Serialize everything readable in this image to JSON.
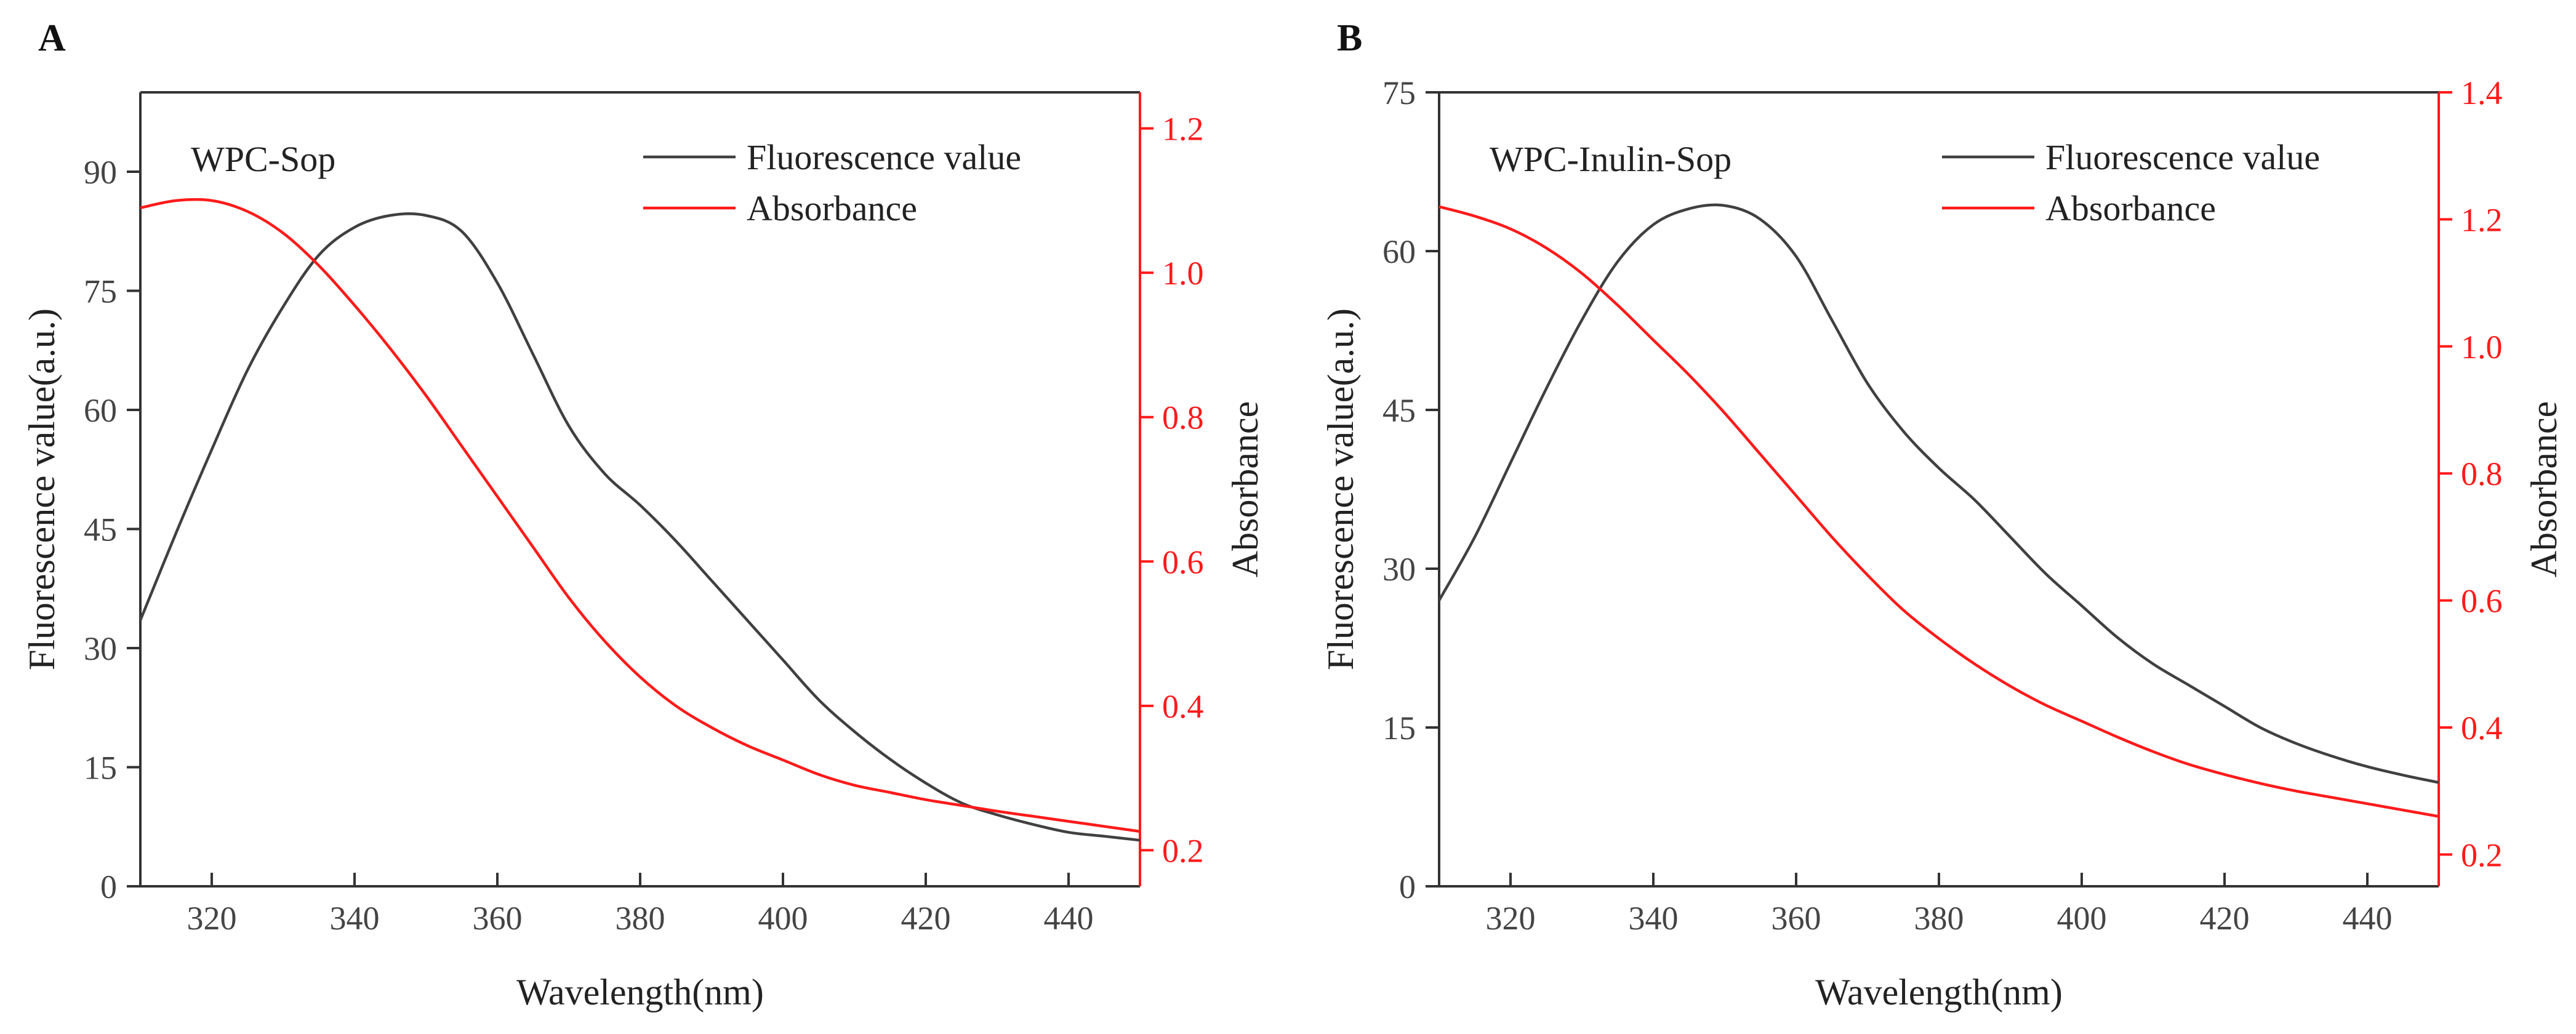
{
  "figure": {
    "axis_color": "#333333",
    "fluorescence_color": "#404040",
    "absorbance_color": "#ff1a1a"
  },
  "chart_data": [
    {
      "panel_label": "A",
      "type": "line",
      "annotation": "WPC-Sop",
      "xlabel": "Wavelength(nm)",
      "ylabel": "Fluorescence value(a.u.)",
      "y2label": "Absorbance",
      "xlim": [
        310,
        450
      ],
      "ylim": [
        0,
        100
      ],
      "y2lim": [
        0.15,
        1.25
      ],
      "xticks": [
        320,
        340,
        360,
        380,
        400,
        420,
        440
      ],
      "yticks": [
        0,
        15,
        30,
        45,
        60,
        75,
        90
      ],
      "y2ticks": [
        0.2,
        0.4,
        0.6,
        0.8,
        1.0,
        1.2
      ],
      "y2tick_labels": [
        "0.2",
        "0.4",
        "0.6",
        "0.8",
        "1.0",
        "1.2"
      ],
      "legend": [
        "Fluorescence value",
        "Absorbance"
      ],
      "series": [
        {
          "name": "Fluorescence value",
          "axis": "left",
          "x": [
            310,
            315,
            320,
            325,
            330,
            335,
            340,
            345,
            350,
            355,
            360,
            365,
            370,
            375,
            380,
            385,
            390,
            395,
            400,
            405,
            410,
            415,
            420,
            425,
            430,
            435,
            440,
            445,
            450
          ],
          "y": [
            33.5,
            44.5,
            55,
            65,
            73,
            79.5,
            83,
            84.5,
            84.5,
            82.5,
            76,
            67,
            58,
            52,
            48,
            43.5,
            38.5,
            33.5,
            28.5,
            23.5,
            19.5,
            16,
            13,
            10.5,
            9,
            7.8,
            6.8,
            6.3,
            5.8
          ]
        },
        {
          "name": "Absorbance",
          "axis": "right",
          "x": [
            310,
            315,
            320,
            325,
            330,
            335,
            340,
            345,
            350,
            355,
            360,
            365,
            370,
            375,
            380,
            385,
            390,
            395,
            400,
            405,
            410,
            415,
            420,
            425,
            430,
            435,
            440,
            445,
            450
          ],
          "y": [
            1.09,
            1.1,
            1.1,
            1.085,
            1.055,
            1.01,
            0.955,
            0.895,
            0.83,
            0.76,
            0.69,
            0.62,
            0.55,
            0.49,
            0.44,
            0.4,
            0.37,
            0.345,
            0.325,
            0.305,
            0.29,
            0.28,
            0.27,
            0.262,
            0.254,
            0.247,
            0.24,
            0.233,
            0.226
          ]
        }
      ]
    },
    {
      "panel_label": "B",
      "type": "line",
      "annotation": "WPC-Inulin-Sop",
      "xlabel": "Wavelength(nm)",
      "ylabel": "Fluorescence value(a.u.)",
      "y2label": "Absorbance",
      "xlim": [
        310,
        450
      ],
      "ylim": [
        0,
        75
      ],
      "y2lim": [
        0.15,
        1.4
      ],
      "xticks": [
        320,
        340,
        360,
        380,
        400,
        420,
        440
      ],
      "yticks": [
        0,
        15,
        30,
        45,
        60,
        75
      ],
      "y2ticks": [
        0.2,
        0.4,
        0.6,
        0.8,
        1.0,
        1.2,
        1.4
      ],
      "y2tick_labels": [
        "0.2",
        "0.4",
        "0.6",
        "0.8",
        "1.0",
        "1.2",
        "1.4"
      ],
      "legend": [
        "Fluorescence value",
        "Absorbance"
      ],
      "series": [
        {
          "name": "Fluorescence value",
          "axis": "left",
          "x": [
            310,
            315,
            320,
            325,
            330,
            335,
            340,
            345,
            350,
            355,
            360,
            365,
            370,
            375,
            380,
            385,
            390,
            395,
            400,
            405,
            410,
            415,
            420,
            425,
            430,
            435,
            440,
            445,
            450
          ],
          "y": [
            27,
            33,
            40,
            47,
            53.5,
            59,
            62.5,
            64,
            64.3,
            63,
            59.5,
            53.5,
            47.5,
            43,
            39.5,
            36.5,
            33,
            29.5,
            26.5,
            23.5,
            21,
            19,
            17,
            15,
            13.5,
            12.3,
            11.3,
            10.5,
            9.8
          ]
        },
        {
          "name": "Absorbance",
          "axis": "right",
          "x": [
            310,
            315,
            320,
            325,
            330,
            335,
            340,
            345,
            350,
            355,
            360,
            365,
            370,
            375,
            380,
            385,
            390,
            395,
            400,
            405,
            410,
            415,
            420,
            425,
            430,
            435,
            440,
            445,
            450
          ],
          "y": [
            1.22,
            1.205,
            1.185,
            1.155,
            1.115,
            1.065,
            1.01,
            0.955,
            0.895,
            0.83,
            0.765,
            0.7,
            0.64,
            0.585,
            0.54,
            0.5,
            0.465,
            0.435,
            0.41,
            0.385,
            0.362,
            0.342,
            0.326,
            0.312,
            0.3,
            0.29,
            0.28,
            0.27,
            0.26
          ]
        }
      ]
    }
  ]
}
